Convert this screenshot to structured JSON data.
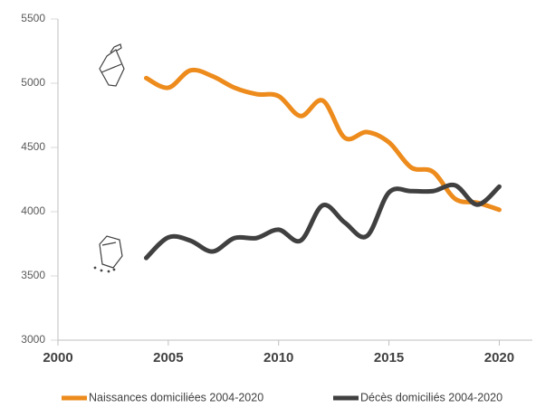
{
  "chart_data": {
    "type": "line",
    "x": [
      2004,
      2005,
      2006,
      2007,
      2008,
      2009,
      2010,
      2011,
      2012,
      2013,
      2014,
      2015,
      2016,
      2017,
      2018,
      2019,
      2020
    ],
    "series": [
      {
        "name": "Naissances domiciliées 2004-2020",
        "color": "#ed8b1c",
        "values": [
          5040,
          4965,
          5100,
          5055,
          4965,
          4915,
          4900,
          4745,
          4865,
          4575,
          4620,
          4540,
          4345,
          4310,
          4100,
          4070,
          4015
        ]
      },
      {
        "name": "Décès domiciliés 2004-2020",
        "color": "#404040",
        "values": [
          3640,
          3800,
          3775,
          3690,
          3795,
          3795,
          3860,
          3775,
          4050,
          3915,
          3810,
          4150,
          4160,
          4160,
          4205,
          4055,
          4195
        ]
      }
    ],
    "xlim": [
      2000,
      2021.5
    ],
    "xticks": [
      2000,
      2005,
      2010,
      2015,
      2020
    ],
    "ylim": [
      3000,
      5500
    ],
    "yticks": [
      3000,
      3500,
      4000,
      4500,
      5000,
      5500
    ],
    "grid": false,
    "legend": "bottom"
  }
}
